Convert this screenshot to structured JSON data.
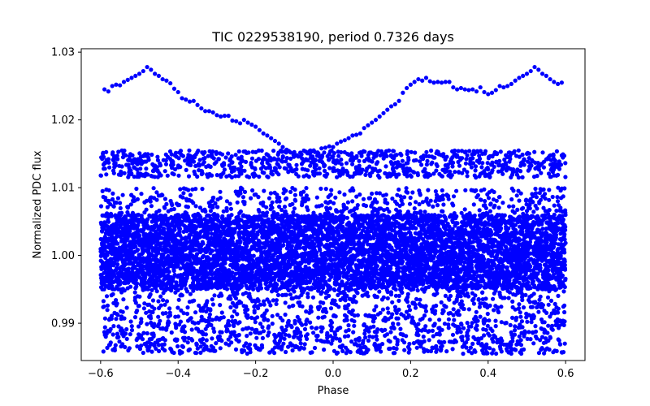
{
  "chart_data": {
    "type": "scatter",
    "title": "TIC 0229538190, period 0.7326 days",
    "xlabel": "Phase",
    "ylabel": "Normalized PDC flux",
    "xlim": [
      -0.65,
      0.65
    ],
    "ylim": [
      0.9845,
      1.0305
    ],
    "x_ticks": [
      -0.6,
      -0.4,
      -0.2,
      0.0,
      0.2,
      0.4,
      0.6
    ],
    "x_tick_labels": [
      "−0.6",
      "−0.4",
      "−0.2",
      "0.0",
      "0.2",
      "0.4",
      "0.6"
    ],
    "y_ticks": [
      0.99,
      1.0,
      1.01,
      1.02,
      1.03
    ],
    "y_tick_labels": [
      "0.99",
      "1.00",
      "1.01",
      "1.02",
      "1.03"
    ],
    "marker_color": "#0000ff",
    "grid": false,
    "legend": "none",
    "series": [
      {
        "name": "outlier-arc",
        "points": [
          [
            -0.59,
            1.0245
          ],
          [
            -0.58,
            1.0242
          ],
          [
            -0.57,
            1.025
          ],
          [
            -0.56,
            1.0252
          ],
          [
            -0.55,
            1.0251
          ],
          [
            -0.54,
            1.0256
          ],
          [
            -0.53,
            1.0259
          ],
          [
            -0.52,
            1.0262
          ],
          [
            -0.51,
            1.0265
          ],
          [
            -0.5,
            1.0268
          ],
          [
            -0.49,
            1.0272
          ],
          [
            -0.48,
            1.0278
          ],
          [
            -0.47,
            1.0274
          ],
          [
            -0.46,
            1.0268
          ],
          [
            -0.45,
            1.0265
          ],
          [
            -0.44,
            1.026
          ],
          [
            -0.43,
            1.0258
          ],
          [
            -0.42,
            1.0254
          ],
          [
            -0.41,
            1.0246
          ],
          [
            -0.4,
            1.0241
          ],
          [
            -0.39,
            1.0232
          ],
          [
            -0.38,
            1.023
          ],
          [
            -0.37,
            1.0227
          ],
          [
            -0.36,
            1.0228
          ],
          [
            -0.35,
            1.0222
          ],
          [
            -0.34,
            1.0217
          ],
          [
            -0.33,
            1.0213
          ],
          [
            -0.32,
            1.0213
          ],
          [
            -0.31,
            1.0211
          ],
          [
            -0.3,
            1.0207
          ],
          [
            -0.29,
            1.0205
          ],
          [
            -0.28,
            1.0206
          ],
          [
            -0.27,
            1.0206
          ],
          [
            -0.26,
            1.0199
          ],
          [
            -0.25,
            1.0198
          ],
          [
            -0.24,
            1.0195
          ],
          [
            -0.23,
            1.02
          ],
          [
            -0.22,
            1.0196
          ],
          [
            -0.21,
            1.0193
          ],
          [
            -0.2,
            1.019
          ],
          [
            -0.19,
            1.0185
          ],
          [
            -0.18,
            1.018
          ],
          [
            -0.17,
            1.0177
          ],
          [
            -0.16,
            1.0173
          ],
          [
            -0.15,
            1.0169
          ],
          [
            -0.14,
            1.0165
          ],
          [
            -0.13,
            1.016
          ],
          [
            -0.12,
            1.0156
          ],
          [
            -0.11,
            1.0152
          ],
          [
            -0.1,
            1.0148
          ],
          [
            -0.09,
            1.0146
          ],
          [
            -0.08,
            1.0143
          ],
          [
            -0.07,
            1.0142
          ],
          [
            -0.06,
            1.015
          ],
          [
            -0.05,
            1.0155
          ],
          [
            -0.04,
            1.0152
          ],
          [
            -0.03,
            1.0158
          ],
          [
            -0.02,
            1.0159
          ],
          [
            -0.01,
            1.0161
          ],
          [
            0.0,
            1.016
          ],
          [
            0.01,
            1.0165
          ],
          [
            0.02,
            1.0168
          ],
          [
            0.03,
            1.017
          ],
          [
            0.04,
            1.0173
          ],
          [
            0.05,
            1.0177
          ],
          [
            0.06,
            1.0178
          ],
          [
            0.07,
            1.018
          ],
          [
            0.08,
            1.0188
          ],
          [
            0.09,
            1.0192
          ],
          [
            0.1,
            1.0196
          ],
          [
            0.11,
            1.02
          ],
          [
            0.12,
            1.0205
          ],
          [
            0.13,
            1.021
          ],
          [
            0.14,
            1.0215
          ],
          [
            0.15,
            1.022
          ],
          [
            0.16,
            1.0223
          ],
          [
            0.17,
            1.0228
          ],
          [
            0.18,
            1.024
          ],
          [
            0.19,
            1.0247
          ],
          [
            0.2,
            1.0252
          ],
          [
            0.21,
            1.0256
          ],
          [
            0.22,
            1.026
          ],
          [
            0.23,
            1.0258
          ],
          [
            0.24,
            1.0262
          ],
          [
            0.25,
            1.0257
          ],
          [
            0.26,
            1.0255
          ],
          [
            0.27,
            1.0256
          ],
          [
            0.28,
            1.0255
          ],
          [
            0.29,
            1.0256
          ],
          [
            0.3,
            1.0256
          ],
          [
            0.31,
            1.0248
          ],
          [
            0.32,
            1.0245
          ],
          [
            0.33,
            1.0247
          ],
          [
            0.34,
            1.0245
          ],
          [
            0.35,
            1.0244
          ],
          [
            0.36,
            1.0245
          ],
          [
            0.37,
            1.0242
          ],
          [
            0.38,
            1.0248
          ],
          [
            0.39,
            1.0241
          ],
          [
            0.4,
            1.0238
          ],
          [
            0.41,
            1.024
          ],
          [
            0.42,
            1.0244
          ],
          [
            0.43,
            1.025
          ],
          [
            0.44,
            1.0248
          ],
          [
            0.45,
            1.025
          ],
          [
            0.46,
            1.0253
          ],
          [
            0.47,
            1.0258
          ],
          [
            0.48,
            1.0262
          ],
          [
            0.49,
            1.0265
          ],
          [
            0.5,
            1.0268
          ],
          [
            0.51,
            1.0272
          ],
          [
            0.52,
            1.0278
          ],
          [
            0.53,
            1.0274
          ],
          [
            0.54,
            1.0268
          ],
          [
            0.55,
            1.0265
          ],
          [
            0.56,
            1.026
          ],
          [
            0.57,
            1.0256
          ],
          [
            0.58,
            1.0253
          ],
          [
            0.59,
            1.0255
          ]
        ]
      },
      {
        "name": "main-band",
        "phase_range": [
          -0.6,
          0.6
        ],
        "flux_upper_band": [
          1.0115,
          1.0155
        ],
        "flux_core_band": [
          0.995,
          1.006
        ],
        "flux_wide_band": [
          0.99,
          1.01
        ],
        "flux_lower_band": [
          0.9855,
          0.99
        ],
        "approx_point_count": 9000
      }
    ]
  }
}
